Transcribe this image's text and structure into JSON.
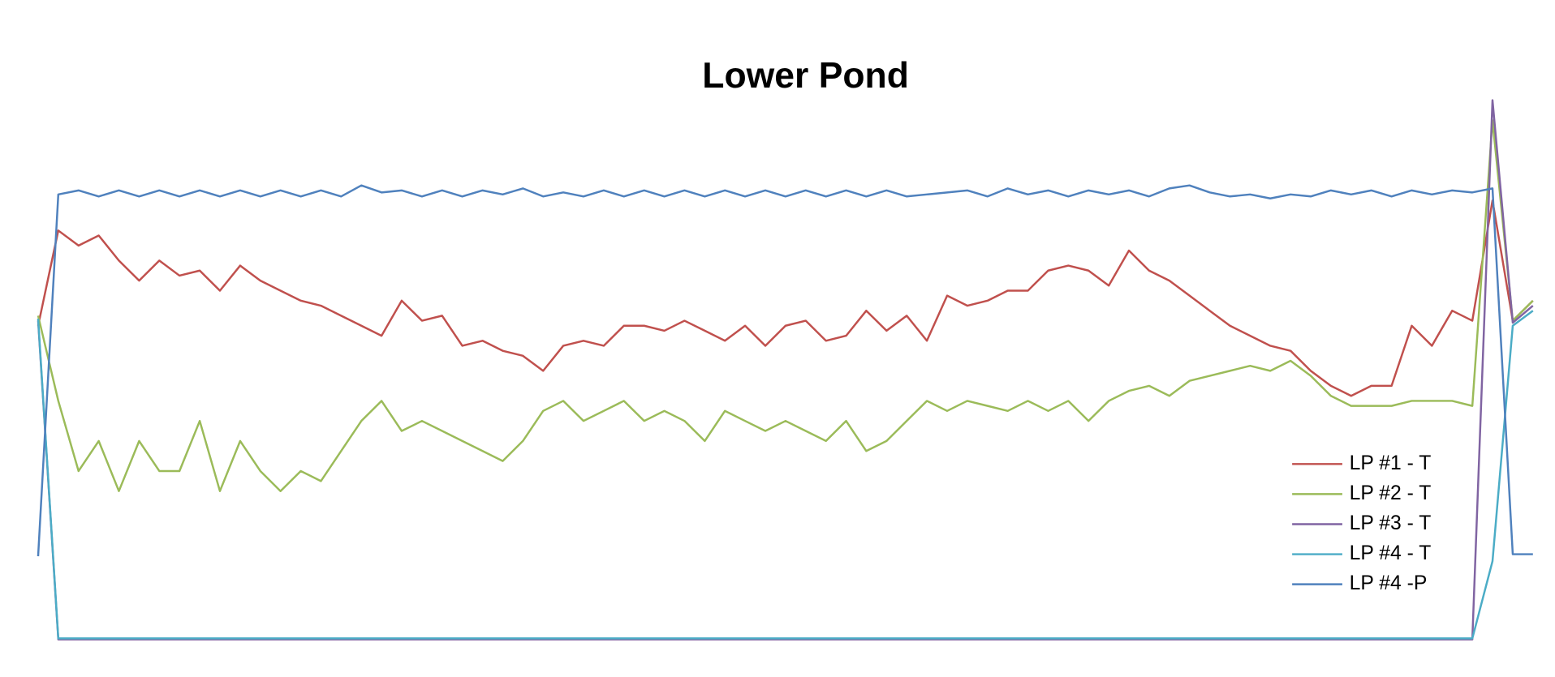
{
  "chart_data": {
    "type": "line",
    "title": "Lower Pond",
    "x": [
      0,
      1,
      2,
      3,
      4,
      5,
      6,
      7,
      8,
      9,
      10,
      11,
      12,
      13,
      14,
      15,
      16,
      17,
      18,
      19,
      20,
      21,
      22,
      23,
      24,
      25,
      26,
      27,
      28,
      29,
      30,
      31,
      32,
      33,
      34,
      35,
      36,
      37,
      38,
      39,
      40,
      41,
      42,
      43,
      44,
      45,
      46,
      47,
      48,
      49,
      50,
      51,
      52,
      53,
      54,
      55,
      56,
      57,
      58,
      59,
      60,
      61,
      62,
      63,
      64,
      65,
      66,
      67,
      68,
      69,
      70,
      71,
      72,
      73,
      74
    ],
    "xlim": [
      0,
      74
    ],
    "ylim": [
      0,
      540
    ],
    "legend": "lower right",
    "series": [
      {
        "name": "LP #1 - T",
        "color": "#c0504d",
        "values": [
          315,
          410,
          395,
          405,
          380,
          360,
          380,
          365,
          370,
          350,
          375,
          360,
          350,
          340,
          335,
          325,
          315,
          305,
          340,
          320,
          325,
          295,
          300,
          290,
          285,
          270,
          295,
          300,
          295,
          315,
          315,
          310,
          320,
          310,
          300,
          315,
          295,
          315,
          320,
          300,
          305,
          330,
          310,
          325,
          300,
          345,
          335,
          340,
          350,
          350,
          370,
          375,
          370,
          355,
          390,
          370,
          360,
          345,
          330,
          315,
          305,
          295,
          290,
          270,
          255,
          245,
          255,
          255,
          315,
          295,
          330,
          320,
          440,
          320,
          340
        ]
      },
      {
        "name": "LP #2 - T",
        "color": "#9bbb59",
        "values": [
          325,
          240,
          170,
          200,
          150,
          200,
          170,
          170,
          220,
          150,
          200,
          170,
          150,
          170,
          160,
          190,
          220,
          240,
          210,
          220,
          210,
          200,
          190,
          180,
          200,
          230,
          240,
          220,
          230,
          240,
          220,
          230,
          220,
          200,
          230,
          220,
          210,
          220,
          210,
          200,
          220,
          190,
          200,
          220,
          240,
          230,
          240,
          235,
          230,
          240,
          230,
          240,
          220,
          240,
          250,
          255,
          245,
          260,
          265,
          270,
          275,
          270,
          280,
          265,
          245,
          235,
          235,
          235,
          240,
          240,
          240,
          235,
          520,
          320,
          340
        ]
      },
      {
        "name": "LP #3 - T",
        "color": "#8064a2",
        "values": [
          320,
          2,
          2,
          2,
          2,
          2,
          2,
          2,
          2,
          2,
          2,
          2,
          2,
          2,
          2,
          2,
          2,
          2,
          2,
          2,
          2,
          2,
          2,
          2,
          2,
          2,
          2,
          2,
          2,
          2,
          2,
          2,
          2,
          2,
          2,
          2,
          2,
          2,
          2,
          2,
          2,
          2,
          2,
          2,
          2,
          2,
          2,
          2,
          2,
          2,
          2,
          2,
          2,
          2,
          2,
          2,
          2,
          2,
          2,
          2,
          2,
          2,
          2,
          2,
          2,
          2,
          2,
          2,
          2,
          2,
          2,
          2,
          540,
          318,
          335
        ]
      },
      {
        "name": "LP #4 - T",
        "color": "#4bacc6",
        "values": [
          322,
          3,
          3,
          3,
          3,
          3,
          3,
          3,
          3,
          3,
          3,
          3,
          3,
          3,
          3,
          3,
          3,
          3,
          3,
          3,
          3,
          3,
          3,
          3,
          3,
          3,
          3,
          3,
          3,
          3,
          3,
          3,
          3,
          3,
          3,
          3,
          3,
          3,
          3,
          3,
          3,
          3,
          3,
          3,
          3,
          3,
          3,
          3,
          3,
          3,
          3,
          3,
          3,
          3,
          3,
          3,
          3,
          3,
          3,
          3,
          3,
          3,
          3,
          3,
          3,
          3,
          3,
          3,
          3,
          3,
          3,
          3,
          80,
          315,
          330
        ]
      },
      {
        "name": "LP #4 -P",
        "color": "#4f81bd",
        "values": [
          85,
          446,
          450,
          444,
          450,
          444,
          450,
          444,
          450,
          444,
          450,
          444,
          450,
          444,
          450,
          444,
          455,
          448,
          450,
          444,
          450,
          444,
          450,
          446,
          452,
          444,
          448,
          444,
          450,
          444,
          450,
          444,
          450,
          444,
          450,
          444,
          450,
          444,
          450,
          444,
          450,
          444,
          450,
          444,
          446,
          448,
          450,
          444,
          452,
          446,
          450,
          444,
          450,
          446,
          450,
          444,
          452,
          455,
          448,
          444,
          446,
          442,
          446,
          444,
          450,
          446,
          450,
          444,
          450,
          446,
          450,
          448,
          452,
          87,
          87
        ]
      }
    ]
  }
}
